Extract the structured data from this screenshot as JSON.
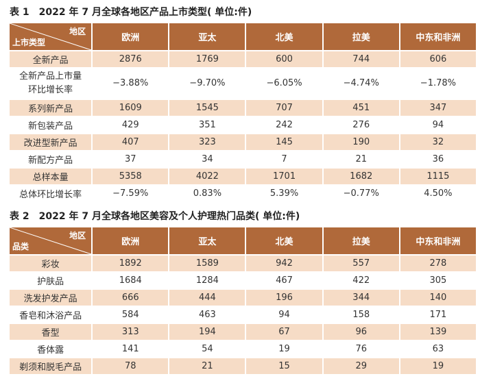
{
  "table1": {
    "caption_num": "表 1",
    "caption": "2022 年 7 月全球各地区产品上市类型( 单位:件)",
    "corner_top": "地区",
    "corner_bottom": "上市类型",
    "columns": [
      "欧洲",
      "亚太",
      "北美",
      "拉美",
      "中东和非洲"
    ],
    "rows": [
      {
        "label": "全新产品",
        "values": [
          "2876",
          "1769",
          "600",
          "744",
          "606"
        ]
      },
      {
        "label": "全新产品上市量\n环比增长率",
        "values": [
          "−3.88%",
          "−9.70%",
          "−6.05%",
          "−4.74%",
          "−1.78%"
        ]
      },
      {
        "label": "系列新产品",
        "values": [
          "1609",
          "1545",
          "707",
          "451",
          "347"
        ]
      },
      {
        "label": "新包装产品",
        "values": [
          "429",
          "351",
          "242",
          "276",
          "94"
        ]
      },
      {
        "label": "改进型新产品",
        "values": [
          "407",
          "323",
          "145",
          "190",
          "32"
        ]
      },
      {
        "label": "新配方产品",
        "values": [
          "37",
          "34",
          "7",
          "21",
          "36"
        ]
      },
      {
        "label": "总样本量",
        "values": [
          "5358",
          "4022",
          "1701",
          "1682",
          "1115"
        ]
      },
      {
        "label": "总体环比增长率",
        "values": [
          "−7.59%",
          "0.83%",
          "5.39%",
          "−0.77%",
          "4.50%"
        ]
      }
    ]
  },
  "table2": {
    "caption_num": "表 2",
    "caption": "2022 年 7 月全球各地区美容及个人护理热门品类( 单位:件)",
    "corner_top": "地区",
    "corner_bottom": "品类",
    "columns": [
      "欧洲",
      "亚太",
      "北美",
      "拉美",
      "中东和非洲"
    ],
    "rows": [
      {
        "label": "彩妆",
        "values": [
          "1892",
          "1589",
          "942",
          "557",
          "278"
        ]
      },
      {
        "label": "护肤品",
        "values": [
          "1684",
          "1284",
          "467",
          "422",
          "305"
        ]
      },
      {
        "label": "洗发护发产品",
        "values": [
          "666",
          "444",
          "196",
          "344",
          "140"
        ]
      },
      {
        "label": "香皂和沐浴产品",
        "values": [
          "584",
          "463",
          "94",
          "158",
          "171"
        ]
      },
      {
        "label": "香型",
        "values": [
          "313",
          "194",
          "67",
          "96",
          "139"
        ]
      },
      {
        "label": "香体露",
        "values": [
          "141",
          "54",
          "19",
          "76",
          "63"
        ]
      },
      {
        "label": "剃须和脱毛产品",
        "values": [
          "78",
          "21",
          "15",
          "29",
          "19"
        ]
      }
    ]
  }
}
